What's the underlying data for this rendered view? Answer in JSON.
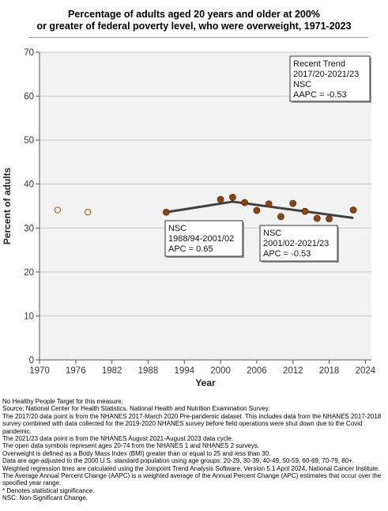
{
  "title_line1": "Percentage of adults aged 20 years and older at 200%",
  "title_line2": "or greater of federal poverty level, who were overweight, 1971-2023",
  "chart_data": {
    "type": "scatter",
    "xlabel": "Year",
    "ylabel": "Percent of adults",
    "xlim": [
      1970,
      2025
    ],
    "ylim": [
      0,
      70
    ],
    "xticks": [
      1970,
      1976,
      1982,
      1988,
      1994,
      2000,
      2006,
      2012,
      2018,
      2024
    ],
    "yticks": [
      0,
      10,
      20,
      30,
      40,
      50,
      60,
      70
    ],
    "grid": "horizontal",
    "points_open": [
      {
        "x": 1973,
        "y": 34.1
      },
      {
        "x": 1978,
        "y": 33.6
      }
    ],
    "points_filled": [
      {
        "x": 1991,
        "y": 33.6
      },
      {
        "x": 2000,
        "y": 36.5
      },
      {
        "x": 2002,
        "y": 37.0
      },
      {
        "x": 2004,
        "y": 35.8
      },
      {
        "x": 2006,
        "y": 34.0
      },
      {
        "x": 2008,
        "y": 35.5
      },
      {
        "x": 2010,
        "y": 32.6
      },
      {
        "x": 2012,
        "y": 35.6
      },
      {
        "x": 2014,
        "y": 33.8
      },
      {
        "x": 2016,
        "y": 32.2
      },
      {
        "x": 2018,
        "y": 32.1
      },
      {
        "x": 2022,
        "y": 34.1
      }
    ],
    "trend_line": [
      {
        "x": 1991,
        "y": 33.6
      },
      {
        "x": 2002,
        "y": 36.0
      },
      {
        "x": 2022,
        "y": 32.3
      }
    ],
    "annotations": [
      {
        "id": "recent-trend",
        "lines": [
          "Recent Trend",
          "2017/20-2021/23",
          "NSC",
          "AAPC = -0.53"
        ]
      },
      {
        "id": "segment-1",
        "lines": [
          "NSC",
          "1988/94-2001/02",
          "APC =  0.65"
        ]
      },
      {
        "id": "segment-2",
        "lines": [
          "NSC",
          "2001/02-2021/23",
          "APC = -0.53"
        ]
      }
    ],
    "colors": {
      "filled_point": "#8b4513",
      "open_point": "#c0672a",
      "trend_line": "#404040",
      "plot_bg": "#f2f2f2"
    }
  },
  "footer": [
    "No Healthy People Target for this measure.",
    "Source: National Center for Health Statistics. National Health and Nutrition Examination Survey.",
    "The 2017/20 data point is from the NHANES 2017-March 2020 Pre-pandemic dataset. This includes data from the NHANES 2017-2018 survey combined with data collected for the 2019-2020 NHANES survey before field operations were shut down due to the Covid pandemic.",
    "The 2021/23 data point is from the NHANES August 2021-August 2023 data cycle.",
    "The open data symbols represent ages 20-74 from the NHANES 1 and NHANES 2 surveys.",
    "Overweight is defined as a Body Mass Index (BMI) greater than or equal to 25 and less than 30.",
    "Data are age-adjusted to the 2000 U.S. standard population using age groups: 20-29, 30-39, 40-49, 50-59, 60-69, 70-79, 80+.",
    "Weighted regression lines are calculated using the Joinpoint Trend Analysis Software, Version 5.1 April 2024, National Cancer Institute.",
    "The Average Annual Percent Change (AAPC) is a weighted average of the Annual Percent Change (APC) estimates that occur over the specified year range.",
    "* Denotes statistical significance.",
    "NSC: Non-Significant Change."
  ]
}
